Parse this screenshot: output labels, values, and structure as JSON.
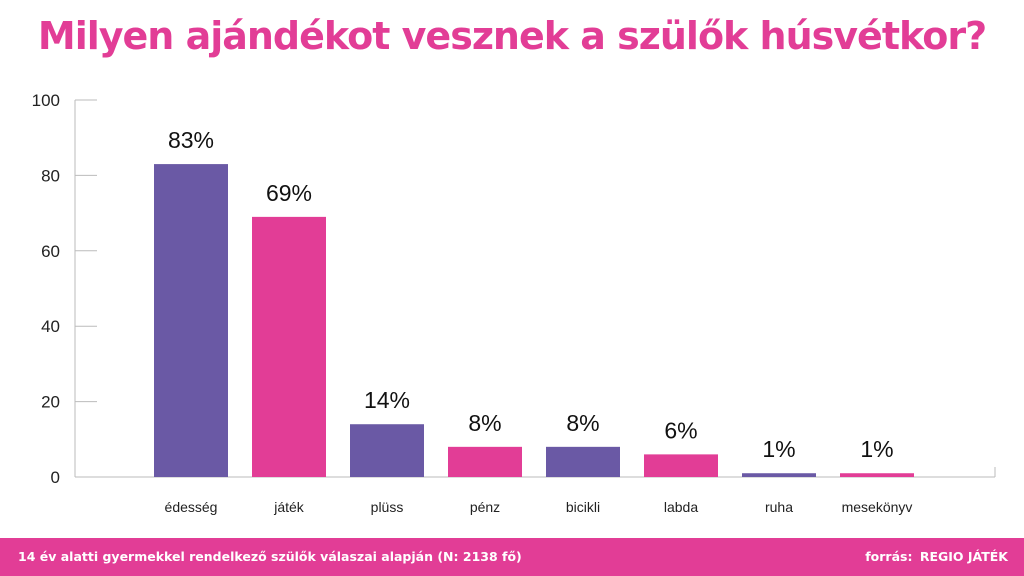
{
  "title": "Milyen ajándékot vesznek a szülők húsvétkor?",
  "footer": {
    "note": "14 év alatti gyermekkel rendelkező szülők válaszai alapján (N: 2138 fő)",
    "source_label": "forrás:",
    "source_value": "REGIO JÁTÉK"
  },
  "colors": {
    "purple": "#6a59a5",
    "pink": "#e23d96",
    "axis": "#bbbbbb"
  },
  "chart_data": {
    "type": "bar",
    "categories": [
      "édesség",
      "játék",
      "plüss",
      "pénz",
      "bicikli",
      "labda",
      "ruha",
      "mesekönyv"
    ],
    "values": [
      83,
      69,
      14,
      8,
      8,
      6,
      1,
      1
    ],
    "value_labels": [
      "83%",
      "69%",
      "14%",
      "8%",
      "8%",
      "6%",
      "1%",
      "1%"
    ],
    "bar_colors": [
      "#6a59a5",
      "#e23d96",
      "#6a59a5",
      "#e23d96",
      "#6a59a5",
      "#e23d96",
      "#6a59a5",
      "#e23d96"
    ],
    "ylim": [
      0,
      100
    ],
    "yticks": [
      0,
      20,
      40,
      60,
      80,
      100
    ],
    "grid": false,
    "legend": "none"
  }
}
